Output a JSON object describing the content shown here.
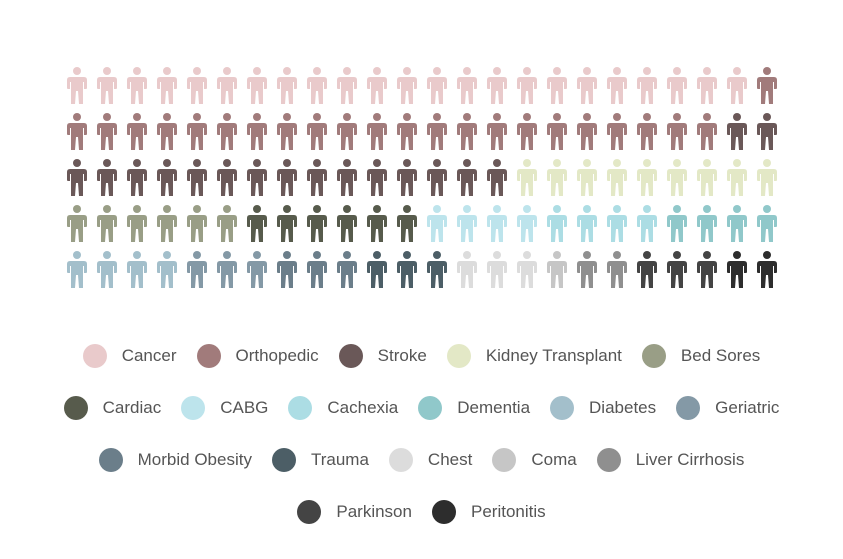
{
  "chart_data": {
    "type": "pictogram",
    "icon": "person-icon",
    "grid": {
      "rows": 5,
      "columns": 24
    },
    "categories": [
      {
        "name": "Cancer",
        "count": 23,
        "color": "#e9cacb"
      },
      {
        "name": "Orthopedic",
        "count": 23,
        "color": "#a17b7b"
      },
      {
        "name": "Stroke",
        "count": 17,
        "color": "#6a5858"
      },
      {
        "name": "Kidney Transplant",
        "count": 9,
        "color": "#e3e8c6"
      },
      {
        "name": "Bed Sores",
        "count": 6,
        "color": "#999e86"
      },
      {
        "name": "Cardiac",
        "count": 6,
        "color": "#575b4c"
      },
      {
        "name": "CABG",
        "count": 4,
        "color": "#bde4ec"
      },
      {
        "name": "Cachexia",
        "count": 4,
        "color": "#acdde4"
      },
      {
        "name": "Dementia",
        "count": 4,
        "color": "#90c8ca"
      },
      {
        "name": "Diabetes",
        "count": 4,
        "color": "#a3bfcb"
      },
      {
        "name": "Geriatric",
        "count": 3,
        "color": "#8499a6"
      },
      {
        "name": "Morbid Obesity",
        "count": 3,
        "color": "#6b7e8a"
      },
      {
        "name": "Trauma",
        "count": 3,
        "color": "#4c5e66"
      },
      {
        "name": "Chest",
        "count": 3,
        "color": "#dcdcdc"
      },
      {
        "name": "Coma",
        "count": 1,
        "color": "#c6c6c6"
      },
      {
        "name": "Liver Cirrhosis",
        "count": 2,
        "color": "#8f8f8f"
      },
      {
        "name": "Parkinson",
        "count": 3,
        "color": "#444444"
      },
      {
        "name": "Peritonitis",
        "count": 2,
        "color": "#2d2d2d"
      }
    ],
    "legend": {
      "position": "bottom",
      "rows": [
        [
          0,
          1,
          2,
          3,
          4
        ],
        [
          5,
          6,
          7,
          8,
          9,
          10
        ],
        [
          11,
          12,
          13,
          14,
          15
        ],
        [
          16,
          17
        ]
      ]
    }
  }
}
